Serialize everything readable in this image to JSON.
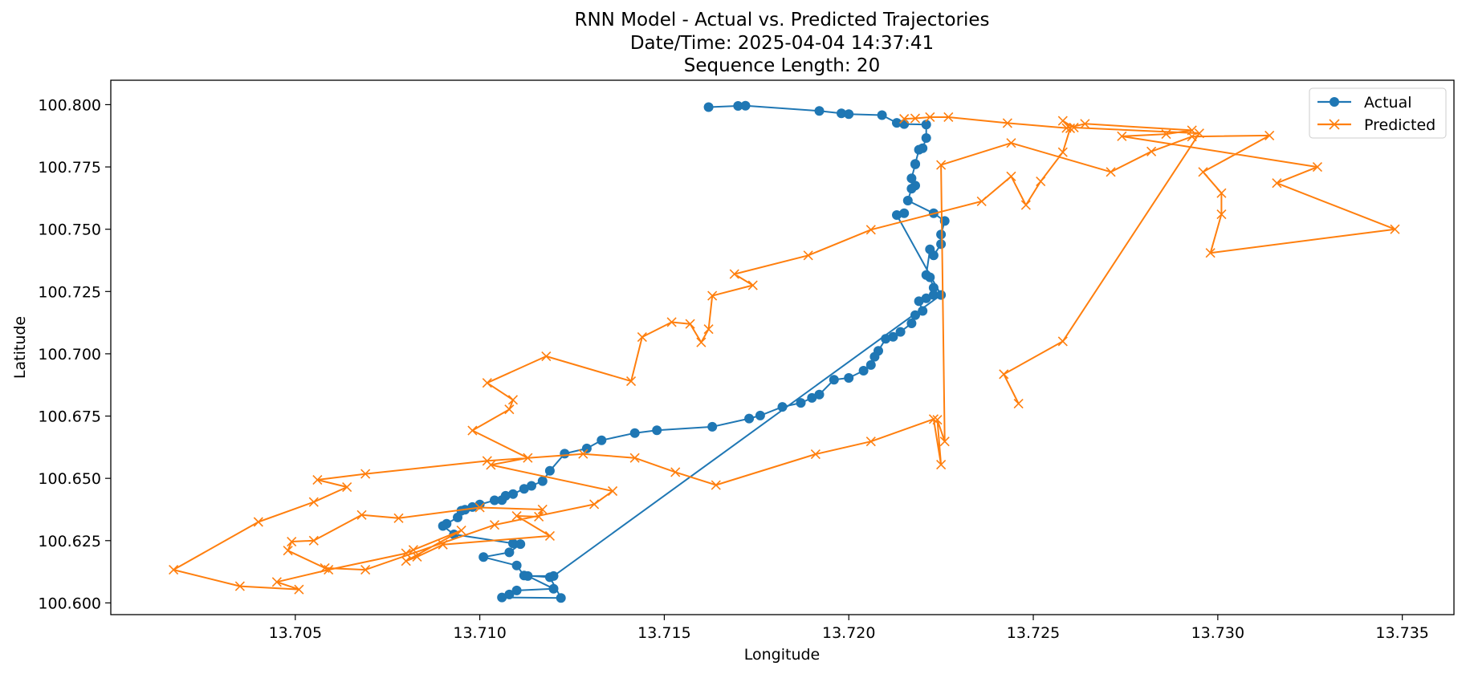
{
  "colors": {
    "actual": "#1f77b4",
    "predicted": "#ff7f0e"
  },
  "chart_data": {
    "type": "line",
    "title": [
      "RNN Model - Actual vs. Predicted Trajectories",
      "Date/Time: 2025-04-04 14:37:41",
      "Sequence Length: 20"
    ],
    "xlabel": "Longitude",
    "ylabel": "Latitude",
    "xlim": [
      13.7,
      13.7364
    ],
    "ylim": [
      100.5953,
      100.8098
    ],
    "xticks": [
      "13.705",
      "13.710",
      "13.715",
      "13.720",
      "13.725",
      "13.730",
      "13.735"
    ],
    "yticks": [
      "100.600",
      "100.625",
      "100.650",
      "100.675",
      "100.700",
      "100.725",
      "100.750",
      "100.775",
      "100.800"
    ],
    "grid": false,
    "legend_position": "top-right",
    "series": [
      {
        "name": "Actual",
        "marker": "circle",
        "x": [
          13.7162,
          13.717,
          13.7172,
          13.7192,
          13.7198,
          13.72,
          13.7209,
          13.7213,
          13.7215,
          13.7221,
          13.7221,
          13.722,
          13.7219,
          13.7218,
          13.7218,
          13.7217,
          13.7218,
          13.7217,
          13.7216,
          13.7223,
          13.7226,
          13.7225,
          13.7225,
          13.7223,
          13.7222,
          13.7221,
          13.7222,
          13.7223,
          13.7223,
          13.7221,
          13.7219,
          13.722,
          13.7218,
          13.7217,
          13.7214,
          13.7212,
          13.721,
          13.7208,
          13.7207,
          13.7206,
          13.7204,
          13.72,
          13.7196,
          13.7192,
          13.719,
          13.7187,
          13.7182,
          13.7176,
          13.7173,
          13.7163,
          13.7148,
          13.7142,
          13.7133,
          13.7129,
          13.7123,
          13.7119,
          13.7117,
          13.7114,
          13.7112,
          13.7109,
          13.7107,
          13.7106,
          13.7104,
          13.71,
          13.7098,
          13.7096,
          13.7095,
          13.7094,
          13.7091,
          13.709,
          13.7093,
          13.7109,
          13.7111,
          13.7108,
          13.7101,
          13.711,
          13.7112,
          13.7119,
          13.7122,
          13.7106,
          13.7108,
          13.711,
          13.712,
          13.7113,
          13.712,
          13.7225,
          13.7213,
          13.7215
        ],
        "y": [
          100.799,
          100.7995,
          100.7996,
          100.7975,
          100.7965,
          100.7962,
          100.7958,
          100.7927,
          100.7922,
          100.792,
          100.7866,
          100.7825,
          100.7819,
          100.7762,
          100.776,
          100.7704,
          100.7675,
          100.7663,
          100.7615,
          100.7564,
          100.7533,
          100.7479,
          100.744,
          100.7395,
          100.7419,
          100.7316,
          100.7307,
          100.7265,
          100.7236,
          100.7223,
          100.7211,
          100.7172,
          100.7155,
          100.7122,
          100.7088,
          100.7068,
          100.706,
          100.7012,
          100.6988,
          100.6955,
          100.6932,
          100.6903,
          100.6896,
          100.6836,
          100.6823,
          100.6803,
          100.6787,
          100.6752,
          100.674,
          100.6707,
          100.6693,
          100.6682,
          100.6653,
          100.662,
          100.6599,
          100.653,
          100.6489,
          100.647,
          100.6458,
          100.6437,
          100.643,
          100.6413,
          100.6412,
          100.6395,
          100.6385,
          100.6374,
          100.637,
          100.6343,
          100.6318,
          100.6309,
          100.6275,
          100.6239,
          100.6236,
          100.6203,
          100.6184,
          100.615,
          100.611,
          100.6103,
          100.602,
          100.6022,
          100.6034,
          100.605,
          100.6057,
          100.6108,
          100.6108,
          100.7236,
          100.7557,
          100.7564
        ]
      },
      {
        "name": "Predicted",
        "marker": "x",
        "x": [
          13.7215,
          13.7218,
          13.7222,
          13.7227,
          13.7243,
          13.7259,
          13.7264,
          13.7293,
          13.7286,
          13.7274,
          13.7327,
          13.7316,
          13.7348,
          13.7298,
          13.7301,
          13.7301,
          13.7296,
          13.7314,
          13.7293,
          13.7282,
          13.7271,
          13.7244,
          13.7225,
          13.7226,
          13.7224,
          13.7225,
          13.7223,
          13.7206,
          13.7191,
          13.7164,
          13.7153,
          13.7142,
          13.7128,
          13.7102,
          13.7069,
          13.7056,
          13.7064,
          13.7055,
          13.704,
          13.7017,
          13.7035,
          13.7051,
          13.7045,
          13.7059,
          13.708,
          13.7082,
          13.7095,
          13.708,
          13.7083,
          13.709,
          13.7119,
          13.711,
          13.7116,
          13.7117,
          13.71,
          13.7078,
          13.7068,
          13.7055,
          13.7049,
          13.7048,
          13.7058,
          13.7069,
          13.7104,
          13.7131,
          13.7136,
          13.7103,
          13.7113,
          13.7098,
          13.7108,
          13.7109,
          13.7102,
          13.7118,
          13.7141,
          13.7144,
          13.7152,
          13.7157,
          13.716,
          13.7162,
          13.7163,
          13.7174,
          13.7169,
          13.7189,
          13.7206,
          13.7236,
          13.7244,
          13.7248,
          13.7252,
          13.7258,
          13.726,
          13.7258,
          13.7261,
          13.7295,
          13.7258,
          13.7242,
          13.7246
        ],
        "y": [
          100.7943,
          100.7945,
          100.795,
          100.795,
          100.7926,
          100.7906,
          100.7923,
          100.7897,
          100.7882,
          100.7873,
          100.775,
          100.7685,
          100.75,
          100.7405,
          100.756,
          100.7645,
          100.773,
          100.7876,
          100.7872,
          100.7812,
          100.773,
          100.7846,
          100.7758,
          100.6648,
          100.6735,
          100.6555,
          100.6738,
          100.6648,
          100.6597,
          100.6473,
          100.6525,
          100.6582,
          100.6598,
          100.657,
          100.6518,
          100.6494,
          100.6465,
          100.6405,
          100.6325,
          100.6133,
          100.6067,
          100.6054,
          100.6084,
          100.6133,
          100.6199,
          100.6213,
          100.6291,
          100.6168,
          100.6185,
          100.6234,
          100.6269,
          100.6349,
          100.6346,
          100.6375,
          100.6383,
          100.634,
          100.6353,
          100.625,
          100.6246,
          100.621,
          100.614,
          100.6133,
          100.6313,
          100.6396,
          100.6449,
          100.6554,
          100.6582,
          100.6692,
          100.6777,
          100.6815,
          100.6883,
          100.699,
          100.689,
          100.7067,
          100.7127,
          100.712,
          100.7046,
          100.7099,
          100.7233,
          100.7275,
          100.732,
          100.7395,
          100.7498,
          100.7612,
          100.7712,
          100.7597,
          100.7692,
          100.7809,
          100.7905,
          100.7935,
          100.7908,
          100.7885,
          100.705,
          100.6918,
          100.68
        ]
      }
    ]
  }
}
